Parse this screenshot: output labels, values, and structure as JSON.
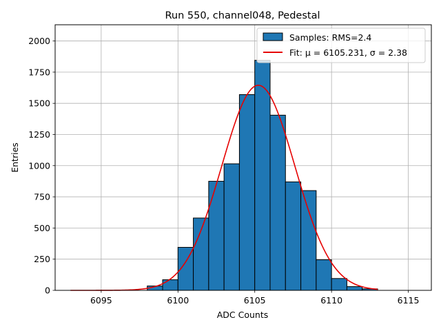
{
  "chart_data": {
    "type": "bar",
    "title": "Run 550, channel048, Pedestal",
    "xlabel": "ADC Counts",
    "ylabel": "Entries",
    "xlim": [
      6092.0,
      6116.5
    ],
    "ylim": [
      0,
      2130
    ],
    "x_ticks": [
      6095,
      6100,
      6105,
      6110,
      6115
    ],
    "y_ticks": [
      0,
      250,
      500,
      750,
      1000,
      1250,
      1500,
      1750,
      2000
    ],
    "grid": true,
    "legend_position": "top-right",
    "bin_width": 1,
    "bins": [
      {
        "x0": 6098,
        "count": 35
      },
      {
        "x0": 6099,
        "count": 85
      },
      {
        "x0": 6100,
        "count": 345
      },
      {
        "x0": 6101,
        "count": 580
      },
      {
        "x0": 6102,
        "count": 875
      },
      {
        "x0": 6103,
        "count": 1015
      },
      {
        "x0": 6104,
        "count": 1570
      },
      {
        "x0": 6105,
        "count": 1845
      },
      {
        "x0": 6106,
        "count": 1405
      },
      {
        "x0": 6107,
        "count": 870
      },
      {
        "x0": 6108,
        "count": 800
      },
      {
        "x0": 6109,
        "count": 245
      },
      {
        "x0": 6110,
        "count": 95
      },
      {
        "x0": 6111,
        "count": 30
      },
      {
        "x0": 6112,
        "count": 12
      }
    ],
    "fit": {
      "mu": 6105.231,
      "sigma": 2.38,
      "amplitude": 1645,
      "x_range": [
        6093,
        6113
      ]
    },
    "series": [
      {
        "name": "Samples: RMS=2.4",
        "kind": "histogram",
        "color": "#1f77b4"
      },
      {
        "name": "Fit: μ = 6105.231, σ = 2.38",
        "kind": "line",
        "color": "#e60000"
      }
    ]
  }
}
